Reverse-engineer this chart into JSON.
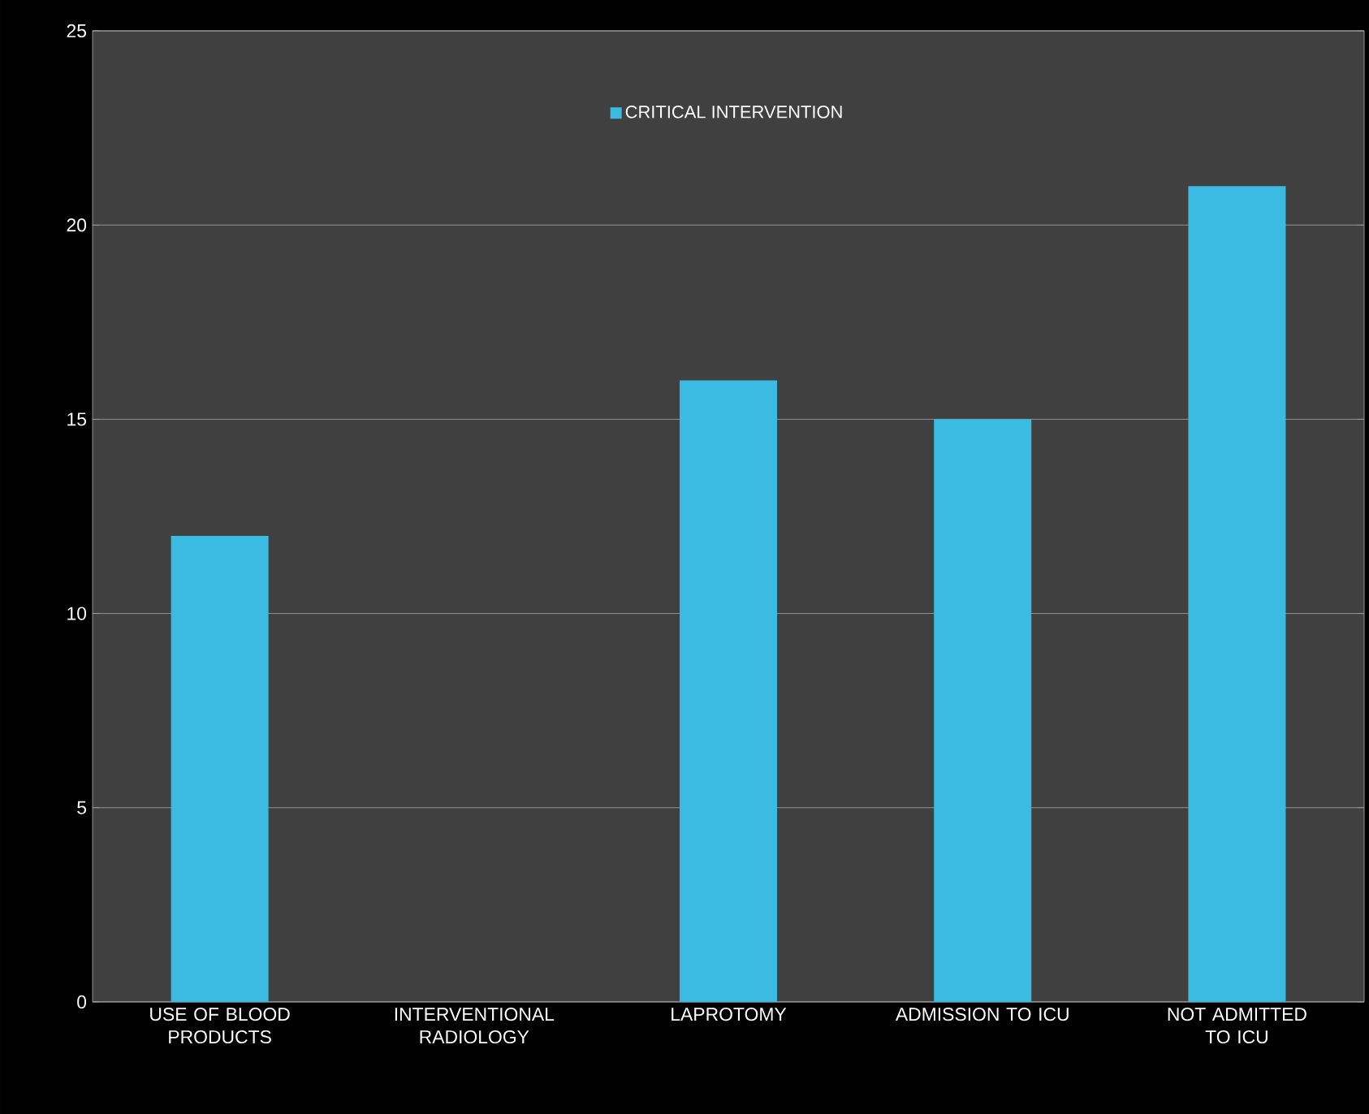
{
  "chart_data": {
    "type": "bar",
    "categories": [
      "USE OF BLOOD PRODUCTS",
      "INTERVENTIONAL RADIOLOGY",
      "LAPROTOMY",
      "ADMISSION TO ICU",
      "NOT ADMITTED TO ICU"
    ],
    "series": [
      {
        "name": "CRITICAL INTERVENTION",
        "color": "#3bbbe2",
        "values": [
          12,
          0,
          16,
          15,
          21
        ]
      }
    ],
    "ylim": [
      0,
      25
    ],
    "yticks": [
      0,
      5,
      10,
      15,
      20,
      25
    ],
    "grid": "y",
    "legend": "top"
  }
}
